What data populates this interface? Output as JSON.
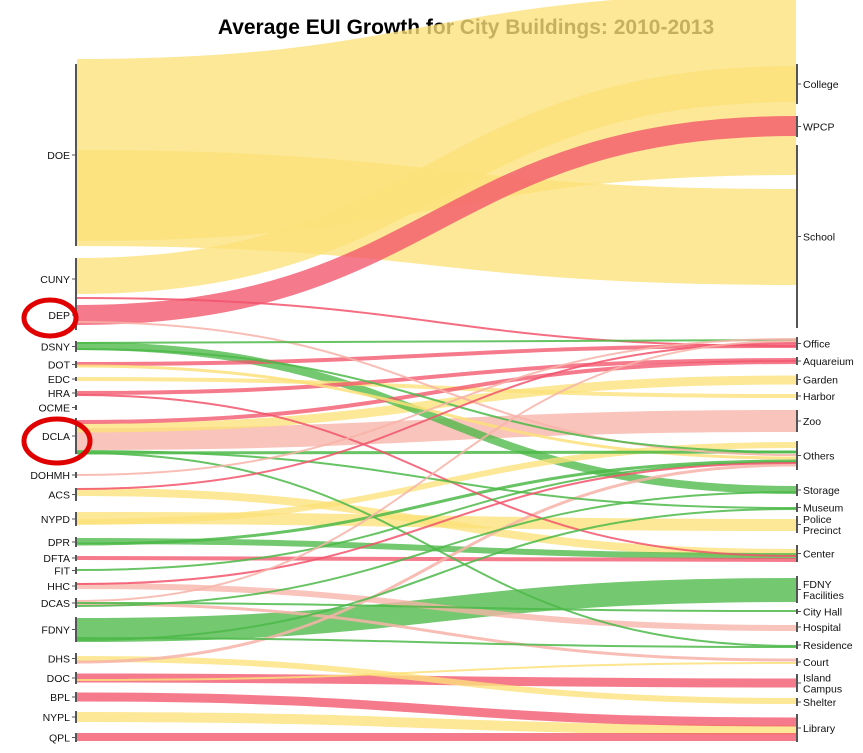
{
  "title": "Average EUI Growth for City Buildings: 2010-2013",
  "colors": {
    "yellow": "#fbe17a",
    "red": "#f2546b",
    "green": "#4cb848",
    "pink": "#f7b3a8",
    "node": "#555555",
    "highlight_circle": "#e00000"
  },
  "agencies": [
    "DOE",
    "CUNY",
    "DEP",
    "DSNY",
    "DOT",
    "EDC",
    "HRA",
    "OCME",
    "DCLA",
    "DOHMH",
    "ACS",
    "NYPD",
    "DPR",
    "DFTA",
    "FIT",
    "HHC",
    "DCAS",
    "FDNY",
    "DHS",
    "DOC",
    "BPL",
    "NYPL",
    "QPL"
  ],
  "building_types": [
    "College",
    "WPCP",
    "School",
    "Office",
    "Aquareium",
    "Garden",
    "Harbor",
    "Zoo",
    "Others",
    "Storage",
    "Museum",
    "Police Precinct",
    "Center",
    "FDNY Facilities",
    "City Hall",
    "Hospital",
    "Residence",
    "Court",
    "Island Campus",
    "Shelter",
    "Library"
  ],
  "highlighted": [
    "DEP",
    "DCLA"
  ],
  "flows": [
    {
      "source": "DOE",
      "target": "School",
      "color": "yellow"
    },
    {
      "source": "DOE",
      "target": "College",
      "color": "yellow"
    },
    {
      "source": "CUNY",
      "target": "College",
      "color": "yellow"
    },
    {
      "source": "CUNY",
      "target": "Office",
      "color": "red"
    },
    {
      "source": "DEP",
      "target": "WPCP",
      "color": "red"
    },
    {
      "source": "DEP",
      "target": "Others",
      "color": "pink"
    },
    {
      "source": "DSNY",
      "target": "Storage",
      "color": "green"
    },
    {
      "source": "DSNY",
      "target": "Office",
      "color": "green"
    },
    {
      "source": "DSNY",
      "target": "Others",
      "color": "green"
    },
    {
      "source": "DOT",
      "target": "Office",
      "color": "red"
    },
    {
      "source": "DOT",
      "target": "Others",
      "color": "yellow"
    },
    {
      "source": "EDC",
      "target": "Harbor",
      "color": "yellow"
    },
    {
      "source": "HRA",
      "target": "Office",
      "color": "red"
    },
    {
      "source": "HRA",
      "target": "Center",
      "color": "red"
    },
    {
      "source": "DCLA",
      "target": "Zoo",
      "color": "pink"
    },
    {
      "source": "DCLA",
      "target": "Aquareium",
      "color": "red"
    },
    {
      "source": "DCLA",
      "target": "Garden",
      "color": "yellow"
    },
    {
      "source": "DCLA",
      "target": "Others",
      "color": "green"
    },
    {
      "source": "DCLA",
      "target": "Museum",
      "color": "green"
    },
    {
      "source": "DCLA",
      "target": "Residence",
      "color": "green"
    },
    {
      "source": "DOHMH",
      "target": "Office",
      "color": "pink"
    },
    {
      "source": "ACS",
      "target": "Center",
      "color": "yellow"
    },
    {
      "source": "ACS",
      "target": "Office",
      "color": "red"
    },
    {
      "source": "NYPD",
      "target": "Police Precinct",
      "color": "yellow"
    },
    {
      "source": "NYPD",
      "target": "Others",
      "color": "yellow"
    },
    {
      "source": "DPR",
      "target": "Center",
      "color": "green"
    },
    {
      "source": "DPR",
      "target": "Others",
      "color": "green"
    },
    {
      "source": "DFTA",
      "target": "Center",
      "color": "red"
    },
    {
      "source": "FIT",
      "target": "Others",
      "color": "green"
    },
    {
      "source": "HHC",
      "target": "Hospital",
      "color": "pink"
    },
    {
      "source": "HHC",
      "target": "Others",
      "color": "red"
    },
    {
      "source": "DCAS",
      "target": "Court",
      "color": "pink"
    },
    {
      "source": "DCAS",
      "target": "Office",
      "color": "pink"
    },
    {
      "source": "DCAS",
      "target": "Storage",
      "color": "green"
    },
    {
      "source": "DCAS",
      "target": "City Hall",
      "color": "green"
    },
    {
      "source": "FDNY",
      "target": "FDNY Facilities",
      "color": "green"
    },
    {
      "source": "FDNY",
      "target": "Residence",
      "color": "green"
    },
    {
      "source": "FDNY",
      "target": "Museum",
      "color": "green"
    },
    {
      "source": "DHS",
      "target": "Shelter",
      "color": "yellow"
    },
    {
      "source": "DHS",
      "target": "Others",
      "color": "pink"
    },
    {
      "source": "DOC",
      "target": "Island Campus",
      "color": "red"
    },
    {
      "source": "DOC",
      "target": "Court",
      "color": "yellow"
    },
    {
      "source": "BPL",
      "target": "Library",
      "color": "red"
    },
    {
      "source": "NYPL",
      "target": "Library",
      "color": "yellow"
    },
    {
      "source": "QPL",
      "target": "Library",
      "color": "red"
    }
  ]
}
